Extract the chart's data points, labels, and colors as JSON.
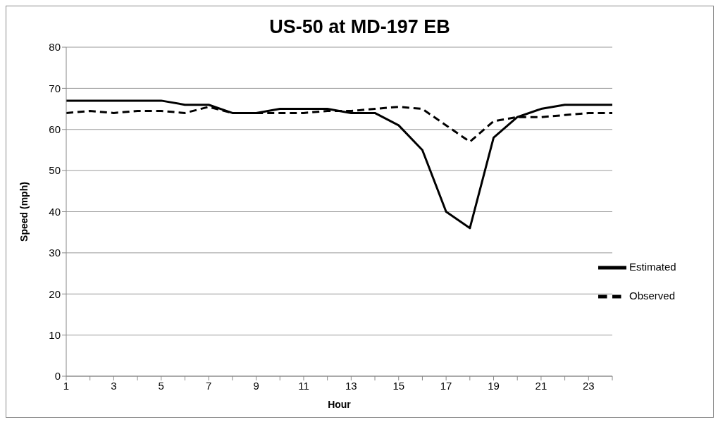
{
  "chart_data": {
    "type": "line",
    "title": "US-50 at MD-197 EB",
    "xlabel": "Hour",
    "ylabel": "Speed (mph)",
    "x": [
      1,
      2,
      3,
      4,
      5,
      6,
      7,
      8,
      9,
      10,
      11,
      12,
      13,
      14,
      15,
      16,
      17,
      18,
      19,
      20,
      21,
      22,
      23,
      24
    ],
    "xlim": [
      1,
      24
    ],
    "xticks": [
      1,
      {
        "value": 2,
        "label": null
      },
      3,
      {
        "value": 4,
        "label": null
      },
      5,
      {
        "value": 6,
        "label": null
      },
      7,
      {
        "value": 8,
        "label": null
      },
      9,
      {
        "value": 10,
        "label": null
      },
      11,
      {
        "value": 12,
        "label": null
      },
      13,
      {
        "value": 14,
        "label": null
      },
      15,
      {
        "value": 16,
        "label": null
      },
      17,
      {
        "value": 18,
        "label": null
      },
      19,
      {
        "value": 20,
        "label": null
      },
      21,
      {
        "value": 22,
        "label": null
      },
      23,
      {
        "value": 24,
        "label": null
      }
    ],
    "ylim": [
      0,
      80
    ],
    "yticks": [
      0,
      10,
      20,
      30,
      40,
      50,
      60,
      70,
      80
    ],
    "grid": "y",
    "legend": "right",
    "marker": "none",
    "series": [
      {
        "name": "Estimated",
        "color": "#000000",
        "line_style": "solid",
        "values": [
          67,
          67,
          67,
          67,
          67,
          66,
          66,
          64,
          64,
          65,
          65,
          65,
          64,
          64,
          61,
          55,
          40,
          36,
          58,
          63,
          65,
          66,
          66,
          66
        ]
      },
      {
        "name": "Observed",
        "color": "#000000",
        "line_style": "dashed",
        "values": [
          64,
          64.5,
          64,
          64.5,
          64.5,
          64,
          65.5,
          64,
          64,
          64,
          64,
          64.5,
          64.5,
          65,
          65.5,
          65,
          61,
          57,
          62,
          63,
          63,
          63.5,
          64,
          64
        ]
      }
    ]
  }
}
